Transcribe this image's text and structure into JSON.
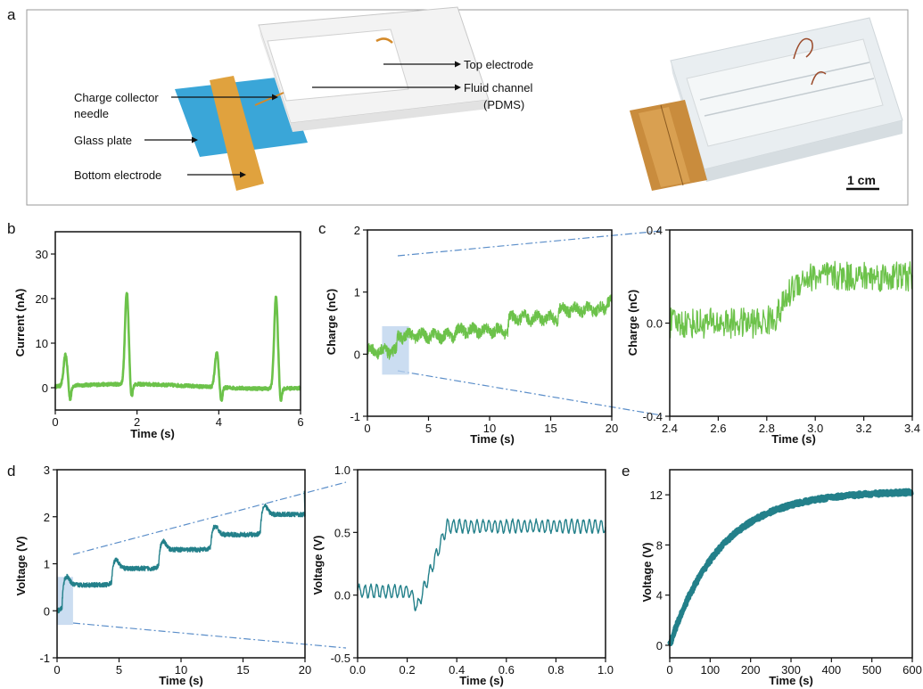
{
  "panel_labels": [
    "a",
    "b",
    "c",
    "d",
    "e"
  ],
  "device": {
    "labels": {
      "top_electrode": "Top electrode",
      "fluid_channel_1": "Fluid channel",
      "fluid_channel_2": "(PDMS)",
      "charge_collector_1": "Charge collector",
      "charge_collector_2": "needle",
      "glass_plate": "Glass plate",
      "bottom_electrode": "Bottom electrode"
    },
    "scale_bar": "1 cm",
    "colors": {
      "glass": "#3aa6d8",
      "copper": "#e0a23e",
      "pdms": "#eeeeee"
    }
  },
  "colors": {
    "green": "#6cc24a",
    "teal": "#23808a",
    "highlight": "#b9d2ec",
    "zoom_line": "#5b8ec9"
  },
  "chart_data": [
    {
      "id": "b",
      "type": "line",
      "xlabel": "Time (s)",
      "ylabel": "Current (nA)",
      "xlim": [
        0,
        6
      ],
      "ylim": [
        -5,
        35
      ],
      "xticks": [
        "0",
        "2",
        "4",
        "6"
      ],
      "yticks": [
        "0",
        "10",
        "20",
        "30"
      ],
      "baseline": 0.3,
      "peaks": [
        {
          "x": 0.25,
          "y": 7.3
        },
        {
          "x": 1.75,
          "y": 21
        },
        {
          "x": 3.95,
          "y": 8
        },
        {
          "x": 5.4,
          "y": 21
        }
      ]
    },
    {
      "id": "c1",
      "type": "line",
      "xlabel": "Time (s)",
      "ylabel": "Charge (nC)",
      "xlim": [
        0,
        20
      ],
      "ylim": [
        -1,
        2
      ],
      "xticks": [
        "0",
        "5",
        "10",
        "15",
        "20"
      ],
      "yticks": [
        "-1",
        "0",
        "1",
        "2"
      ],
      "steps": [
        {
          "x": 0,
          "y": 0.05
        },
        {
          "x": 2.4,
          "y": 0.3
        },
        {
          "x": 7.1,
          "y": 0.38
        },
        {
          "x": 11.5,
          "y": 0.58
        },
        {
          "x": 15.6,
          "y": 0.72
        },
        {
          "x": 19.5,
          "y": 0.88
        }
      ],
      "zoom_range": [
        1.2,
        3.4
      ]
    },
    {
      "id": "c2",
      "type": "line",
      "xlabel": "Time (s)",
      "ylabel": "Charge (nC)",
      "xlim": [
        2.4,
        3.4
      ],
      "ylim": [
        -0.4,
        0.4
      ],
      "xticks": [
        "2.4",
        "2.6",
        "2.8",
        "3.0",
        "3.2",
        "3.4"
      ],
      "yticks": [
        "-0.4",
        "0.0",
        "0.4"
      ],
      "level_before": 0.0,
      "level_after": 0.2,
      "step_x": 2.88
    },
    {
      "id": "d1",
      "type": "line",
      "xlabel": "Time (s)",
      "ylabel": "Voltage (V)",
      "xlim": [
        0,
        20
      ],
      "ylim": [
        -1,
        3
      ],
      "xticks": [
        "0",
        "5",
        "10",
        "15",
        "20"
      ],
      "yticks": [
        "-1",
        "0",
        "1",
        "2",
        "3"
      ],
      "steps": [
        {
          "x": 0,
          "y": 0.0
        },
        {
          "x": 0.4,
          "y": 0.55
        },
        {
          "x": 4.4,
          "y": 0.9
        },
        {
          "x": 8.2,
          "y": 1.3
        },
        {
          "x": 12.4,
          "y": 1.62
        },
        {
          "x": 16.4,
          "y": 2.05
        }
      ],
      "zoom_range": [
        0,
        1.0
      ]
    },
    {
      "id": "d2",
      "type": "line",
      "xlabel": "Time (s)",
      "ylabel": "Voltage (V)",
      "xlim": [
        0,
        1
      ],
      "ylim": [
        -0.5,
        1
      ],
      "xticks": [
        "0.0",
        "0.2",
        "0.4",
        "0.6",
        "0.8",
        "1.0"
      ],
      "yticks": [
        "-0.5",
        "0.0",
        "0.5",
        "1.0"
      ],
      "level_before": 0.03,
      "level_after": 0.55,
      "dip": {
        "x": 0.24,
        "y": -0.1
      },
      "rise_end": 0.36
    },
    {
      "id": "e",
      "type": "line",
      "xlabel": "Time (s)",
      "ylabel": "Voltage (V)",
      "xlim": [
        0,
        600
      ],
      "ylim": [
        -1,
        14
      ],
      "xticks": [
        "0",
        "100",
        "200",
        "300",
        "400",
        "500",
        "600"
      ],
      "yticks": [
        "0",
        "4",
        "8",
        "12"
      ],
      "plateau": 12.3,
      "time_constant": 125
    }
  ]
}
